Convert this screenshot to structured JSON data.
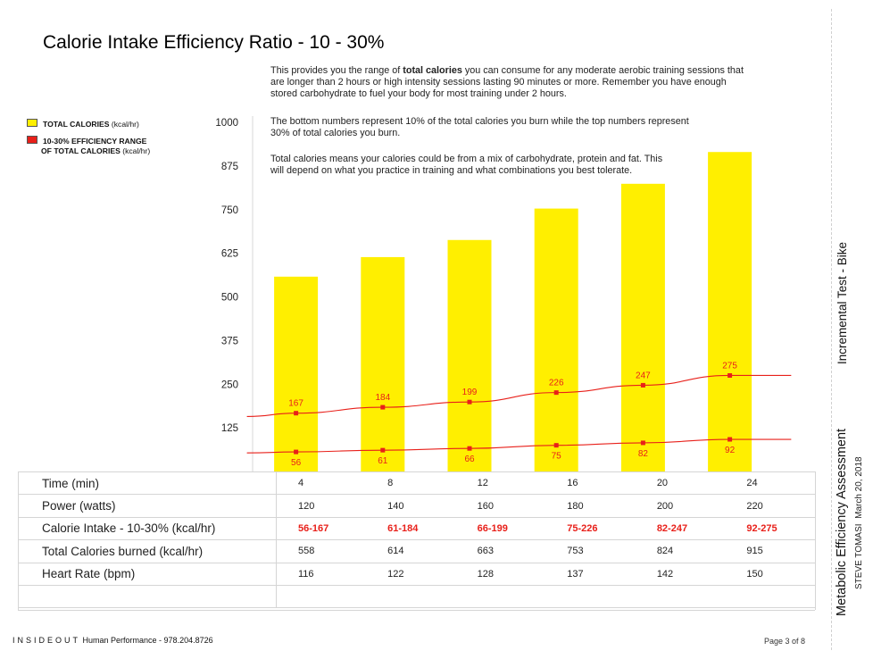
{
  "page": {
    "title": "Calorie Intake Efficiency Ratio - 10 - 30%",
    "intro": {
      "pre": "This provides you the range of ",
      "bold": "total calories",
      "post": " you can consume for any moderate aerobic training sessions that are longer than 2 hours or high intensity sessions lasting 90 minutes or more. Remember you have enough stored carbohydrate to fuel your body for most training under 2 hours."
    },
    "note1": "The bottom numbers represent 10% of the total calories you burn while the top numbers represent 30% of total calories you burn.",
    "note2": "Total calories means your calories could be from a mix of carbohydrate, protein and fat. This will depend on what you practice in training and what combinations you best tolerate."
  },
  "legend": {
    "total": {
      "label": "TOTAL CALORIES",
      "unit": "(kcal/hr)",
      "color": "#ffef00"
    },
    "range": {
      "label": "10-30% EFFICIENCY RANGE",
      "line2": "OF TOTAL CALORIES",
      "unit": "(kcal/hr)",
      "color": "#e8201a"
    }
  },
  "chart_data": {
    "type": "bar",
    "categories": [
      "4",
      "8",
      "12",
      "16",
      "20",
      "24"
    ],
    "ylim": [
      0,
      1000
    ],
    "yticks": [
      125,
      250,
      375,
      500,
      625,
      750,
      875,
      1000
    ],
    "grid": false,
    "series": [
      {
        "name": "TOTAL CALORIES (kcal/hr)",
        "type": "bar",
        "color": "#ffef00",
        "values": [
          558,
          614,
          663,
          753,
          824,
          915
        ]
      },
      {
        "name": "10-30% EFFICIENCY RANGE OF TOTAL CALORIES (kcal/hr)",
        "type": "line",
        "color": "#e8201a",
        "values": [
          167,
          184,
          199,
          226,
          247,
          275
        ]
      },
      {
        "name": "10-30% EFFICIENCY RANGE OF TOTAL CALORIES (kcal/hr)",
        "type": "line",
        "color": "#e8201a",
        "values": [
          56,
          61,
          66,
          75,
          82,
          92
        ]
      }
    ]
  },
  "table": {
    "rows": [
      {
        "label": "Time (min)",
        "values": [
          "4",
          "8",
          "12",
          "16",
          "20",
          "24"
        ]
      },
      {
        "label": "Power (watts)",
        "values": [
          "120",
          "140",
          "160",
          "180",
          "200",
          "220"
        ]
      },
      {
        "label": "Calorie Intake - 10-30% (kcal/hr)",
        "values": [
          "56-167",
          "61-184",
          "66-199",
          "75-226",
          "82-247",
          "92-275"
        ]
      },
      {
        "label": "Total Calories burned (kcal/hr)",
        "values": [
          "558",
          "614",
          "663",
          "753",
          "824",
          "915"
        ]
      },
      {
        "label": "Heart Rate (bpm)",
        "values": [
          "116",
          "122",
          "128",
          "137",
          "142",
          "150"
        ]
      },
      {
        "label": "",
        "values": [
          "",
          "",
          "",
          "",
          "",
          ""
        ]
      }
    ]
  },
  "footer": {
    "brand": "INSIDEOUT",
    "text": " Human Performance - 978.204.8726",
    "page": "Page 3 of 8"
  },
  "sidebar": {
    "test": "Incremental Test - Bike",
    "title": "Metabolic Efficiency Assessment",
    "name": "STEVE TOMASI",
    "date": "March 20, 2018"
  }
}
